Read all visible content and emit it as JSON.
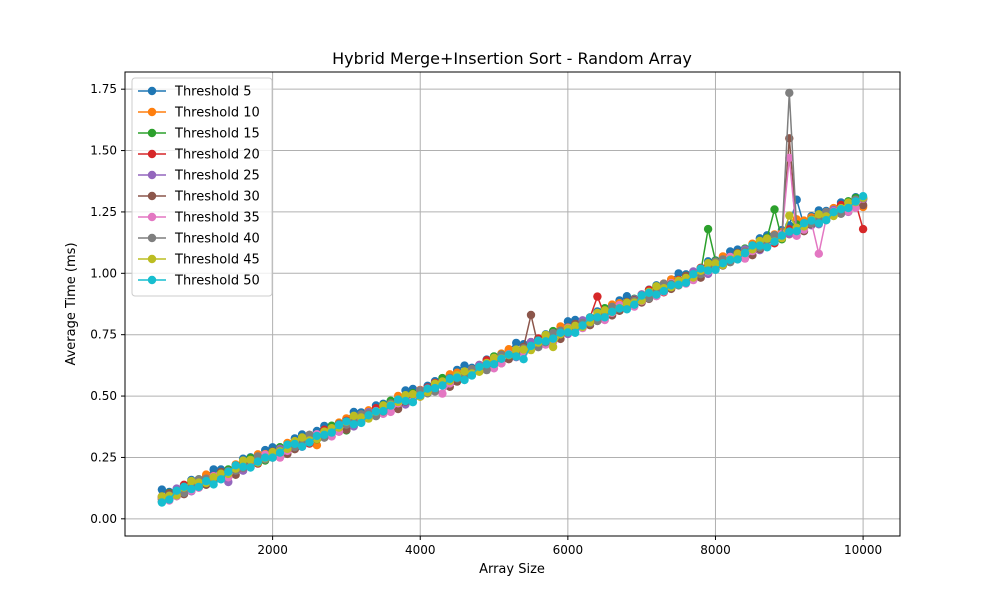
{
  "chart_data": {
    "type": "line",
    "title": "Hybrid Merge+Insertion Sort - Random Array",
    "xlabel": "Array Size",
    "ylabel": "Average Time (ms)",
    "xlim": [
      0,
      10500
    ],
    "ylim": [
      -0.07,
      1.82
    ],
    "xticks": [
      2000,
      4000,
      6000,
      8000,
      10000
    ],
    "yticks": [
      0.0,
      0.25,
      0.5,
      0.75,
      1.0,
      1.25,
      1.5,
      1.75
    ],
    "grid": true,
    "legend_position": "top-left",
    "x": {
      "start": 500,
      "stop": 10000,
      "step": 100
    },
    "y_model": {
      "intercept": 0.025,
      "slope": 0.000118,
      "curve": 1e-09
    },
    "series": [
      {
        "name": "Threshold 5",
        "color": "#1f77b4",
        "offset": 0.018,
        "spikes": [
          [
            9100,
            1.3
          ],
          [
            9900,
            1.31
          ],
          [
            10000,
            1.305
          ]
        ]
      },
      {
        "name": "Threshold 10",
        "color": "#ff7f0e",
        "offset": 0.008,
        "spikes": [
          [
            2600,
            0.3
          ],
          [
            9100,
            1.22
          ],
          [
            10000,
            1.27
          ]
        ]
      },
      {
        "name": "Threshold 15",
        "color": "#2ca02c",
        "offset": 0.004,
        "spikes": [
          [
            3000,
            0.36
          ],
          [
            7900,
            1.18
          ],
          [
            8800,
            1.26
          ]
        ]
      },
      {
        "name": "Threshold 20",
        "color": "#d62728",
        "offset": 0.0,
        "spikes": [
          [
            5500,
            0.72
          ],
          [
            6400,
            0.905
          ],
          [
            6100,
            0.78
          ],
          [
            10000,
            1.18
          ]
        ]
      },
      {
        "name": "Threshold 25",
        "color": "#9467bd",
        "offset": -0.004,
        "spikes": [
          [
            1400,
            0.15
          ],
          [
            9800,
            1.25
          ]
        ]
      },
      {
        "name": "Threshold 30",
        "color": "#8c564b",
        "offset": -0.008,
        "spikes": [
          [
            5500,
            0.83
          ],
          [
            5200,
            0.65
          ],
          [
            9000,
            1.55
          ],
          [
            9300,
            1.2
          ]
        ]
      },
      {
        "name": "Threshold 35",
        "color": "#e377c2",
        "offset": -0.01,
        "spikes": [
          [
            4300,
            0.51
          ],
          [
            9000,
            1.47
          ],
          [
            9400,
            1.08
          ]
        ]
      },
      {
        "name": "Threshold 40",
        "color": "#7f7f7f",
        "offset": -0.002,
        "spikes": [
          [
            9000,
            1.735
          ],
          [
            7200,
            0.92
          ]
        ]
      },
      {
        "name": "Threshold 45",
        "color": "#bcbd22",
        "offset": 0.002,
        "spikes": [
          [
            5800,
            0.7
          ],
          [
            9000,
            1.235
          ]
        ]
      },
      {
        "name": "Threshold 50",
        "color": "#17becf",
        "offset": -0.006,
        "spikes": [
          [
            1200,
            0.14
          ],
          [
            5400,
            0.65
          ],
          [
            9000,
            1.17
          ]
        ]
      }
    ]
  }
}
